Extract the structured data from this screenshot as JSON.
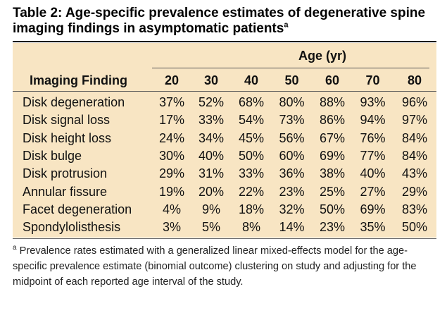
{
  "title": {
    "text": "Table 2: Age-specific prevalence estimates of degenerative spine imaging findings in asymptomatic patients",
    "superscript": "a"
  },
  "table": {
    "age_group_label": "Age (yr)",
    "finding_header": "Imaging Finding",
    "ages": [
      "20",
      "30",
      "40",
      "50",
      "60",
      "70",
      "80"
    ],
    "rows": [
      {
        "finding": "Disk degeneration",
        "values": [
          "37%",
          "52%",
          "68%",
          "80%",
          "88%",
          "93%",
          "96%"
        ]
      },
      {
        "finding": "Disk signal loss",
        "values": [
          "17%",
          "33%",
          "54%",
          "73%",
          "86%",
          "94%",
          "97%"
        ]
      },
      {
        "finding": "Disk height loss",
        "values": [
          "24%",
          "34%",
          "45%",
          "56%",
          "67%",
          "76%",
          "84%"
        ]
      },
      {
        "finding": "Disk bulge",
        "values": [
          "30%",
          "40%",
          "50%",
          "60%",
          "69%",
          "77%",
          "84%"
        ]
      },
      {
        "finding": "Disk protrusion",
        "values": [
          "29%",
          "31%",
          "33%",
          "36%",
          "38%",
          "40%",
          "43%"
        ]
      },
      {
        "finding": "Annular fissure",
        "values": [
          "19%",
          "20%",
          "22%",
          "23%",
          "25%",
          "27%",
          "29%"
        ]
      },
      {
        "finding": "Facet degeneration",
        "values": [
          "4%",
          "9%",
          "18%",
          "32%",
          "50%",
          "69%",
          "83%"
        ]
      },
      {
        "finding": "Spondylolisthesis",
        "values": [
          "3%",
          "5%",
          "8%",
          "14%",
          "23%",
          "35%",
          "50%"
        ]
      }
    ]
  },
  "footnote": {
    "marker": "a",
    "text": "Prevalence rates estimated with a generalized linear mixed-effects model for the age-specific prevalence estimate (binomial outcome) clustering on study and adjusting for the midpoint of each reported age interval of the study."
  },
  "colors": {
    "table_background": "#f8e5c3",
    "text": "#111111"
  }
}
